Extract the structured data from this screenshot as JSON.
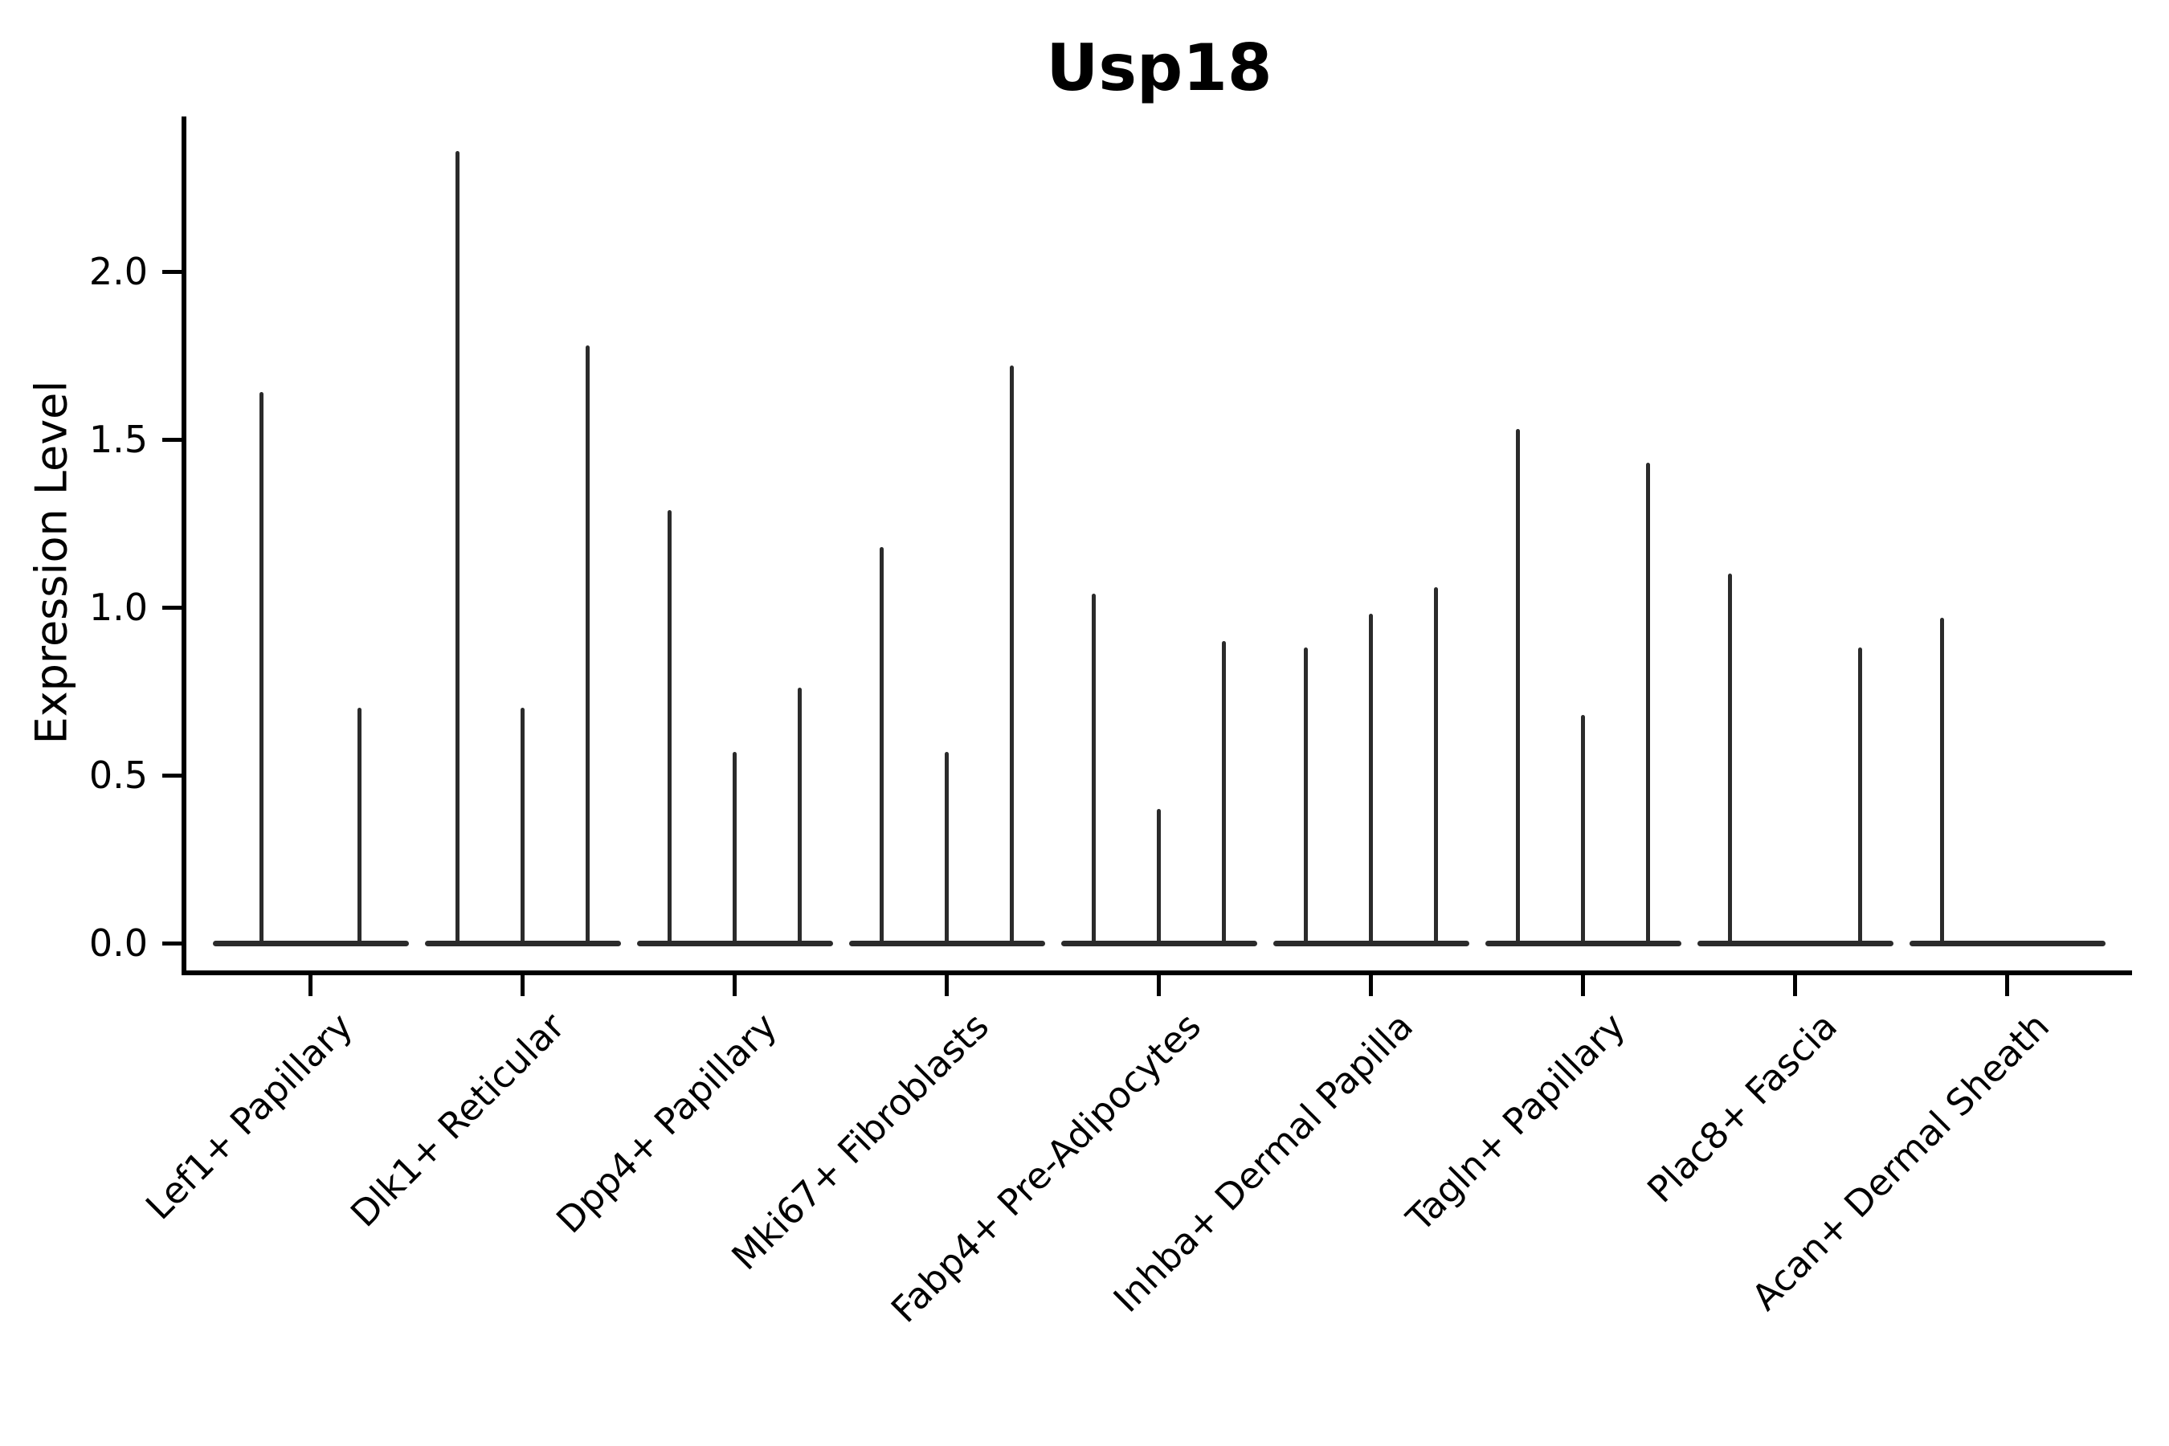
{
  "chart_data": {
    "type": "violin",
    "title": "Usp18",
    "ylabel": "Expression Level",
    "xlabel": "",
    "grid": false,
    "legend_position": "none",
    "yticks": [
      "0.0",
      "0.5",
      "1.0",
      "1.5",
      "2.0"
    ],
    "ytick_values": [
      0.0,
      0.5,
      1.0,
      1.5,
      2.0
    ],
    "ylim": [
      -0.09,
      2.47
    ],
    "categories": [
      "Lef1+ Papillary",
      "Dlk1+ Reticular",
      "Dpp4+ Papillary",
      "Mki67+ Fibroblasts",
      "Fabp4+ Pre-Adipocytes",
      "Inhba+ Dermal Papilla",
      "Tagln+ Papillary",
      "Plac8+ Fascia",
      "Acan+ Dermal Sheath"
    ],
    "series": [
      {
        "category": "Lef1+ Papillary",
        "violin_peaks": [
          1.64,
          0.7
        ]
      },
      {
        "category": "Dlk1+ Reticular",
        "violin_peaks": [
          2.36,
          0.7,
          1.78
        ]
      },
      {
        "category": "Dpp4+ Papillary",
        "violin_peaks": [
          1.29,
          0.57,
          0.76
        ]
      },
      {
        "category": "Mki67+ Fibroblasts",
        "violin_peaks": [
          1.18,
          0.57,
          1.72
        ]
      },
      {
        "category": "Fabp4+ Pre-Adipocytes",
        "violin_peaks": [
          1.04,
          0.4,
          0.9
        ]
      },
      {
        "category": "Inhba+ Dermal Papilla",
        "violin_peaks": [
          0.88,
          0.98,
          1.06
        ]
      },
      {
        "category": "Tagln+ Papillary",
        "violin_peaks": [
          1.53,
          0.68,
          1.43
        ]
      },
      {
        "category": "Plac8+ Fascia",
        "violin_peaks": [
          1.1,
          0.0,
          0.88
        ]
      },
      {
        "category": "Acan+ Dermal Sheath",
        "violin_peaks": [
          0.97,
          0.0,
          0.0
        ]
      }
    ],
    "violin_note": "Violins are collapsed to a flat zero baseline with a thin spike reaching the maximum expression value of each sub-violin; peaks of 0.0 mean the violin is entirely flat at zero."
  },
  "colors": {
    "background": "#ffffff",
    "ink": "#000000",
    "violin": "#2b2b2b"
  }
}
